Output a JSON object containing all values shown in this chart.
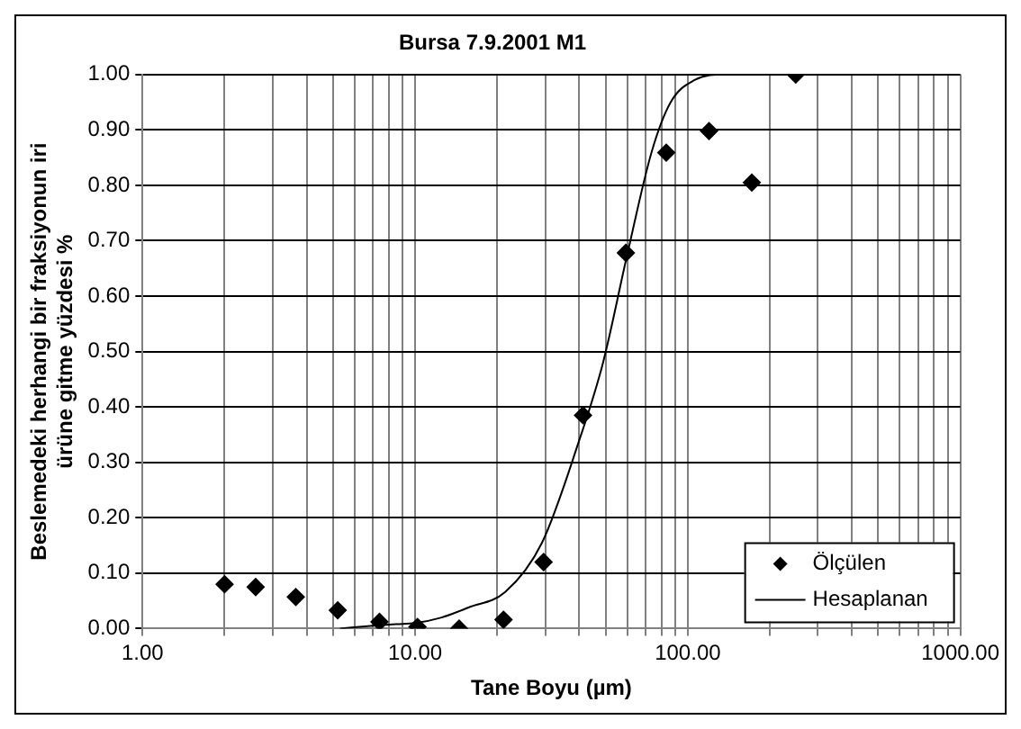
{
  "chart_data": {
    "type": "scatter",
    "title": "Bursa 7.9.2001 M1",
    "xlabel": "Tane Boyu (µm)",
    "ylabel": "Beslemedeki herhangi bir fraksiyonun iri\nürüne gitme yüzdesi %",
    "log": "x",
    "grid": true,
    "legend": "bottom right",
    "xlim": [
      1,
      1000
    ],
    "xticks": [
      {
        "value": 1,
        "label": "1.00"
      },
      {
        "value": 2,
        "label": null
      },
      {
        "value": 3,
        "label": null
      },
      {
        "value": 4,
        "label": null
      },
      {
        "value": 5,
        "label": null
      },
      {
        "value": 6,
        "label": null
      },
      {
        "value": 7,
        "label": null
      },
      {
        "value": 8,
        "label": null
      },
      {
        "value": 9,
        "label": null
      },
      {
        "value": 10,
        "label": "10.00"
      },
      {
        "value": 20,
        "label": null
      },
      {
        "value": 30,
        "label": null
      },
      {
        "value": 40,
        "label": null
      },
      {
        "value": 50,
        "label": null
      },
      {
        "value": 60,
        "label": null
      },
      {
        "value": 70,
        "label": null
      },
      {
        "value": 80,
        "label": null
      },
      {
        "value": 90,
        "label": null
      },
      {
        "value": 100,
        "label": "100.00"
      },
      {
        "value": 200,
        "label": null
      },
      {
        "value": 300,
        "label": null
      },
      {
        "value": 400,
        "label": null
      },
      {
        "value": 500,
        "label": null
      },
      {
        "value": 600,
        "label": null
      },
      {
        "value": 700,
        "label": null
      },
      {
        "value": 800,
        "label": null
      },
      {
        "value": 900,
        "label": null
      },
      {
        "value": 1000,
        "label": "1000.00"
      }
    ],
    "ylim": [
      0,
      1
    ],
    "yticks": [
      {
        "value": 0,
        "label": "0.00"
      },
      {
        "value": 0.1,
        "label": "0.10"
      },
      {
        "value": 0.2,
        "label": "0.20"
      },
      {
        "value": 0.3,
        "label": "0.30"
      },
      {
        "value": 0.4,
        "label": "0.40"
      },
      {
        "value": 0.5,
        "label": "0.50"
      },
      {
        "value": 0.6,
        "label": "0.60"
      },
      {
        "value": 0.7,
        "label": "0.70"
      },
      {
        "value": 0.8,
        "label": "0.80"
      },
      {
        "value": 0.9,
        "label": "0.90"
      },
      {
        "value": 1,
        "label": "1.00"
      }
    ],
    "series": [
      {
        "name": "Ölçülen",
        "type": "scatter",
        "marker": "diamond",
        "color": "#000000",
        "x": [
          2.0,
          2.6,
          3.65,
          5.2,
          7.4,
          10.2,
          14.5,
          21.1,
          29.6,
          41.3,
          59.3,
          83.4,
          119.7,
          171.8,
          249
        ],
        "values": [
          0.08,
          0.075,
          0.057,
          0.033,
          0.012,
          0.003,
          0.0,
          0.016,
          0.12,
          0.385,
          0.678,
          0.859,
          0.898,
          0.805,
          1.0
        ]
      },
      {
        "name": "Hesaplanan",
        "type": "line",
        "marker": "none",
        "line_style": "solid",
        "color": "#000000",
        "x": [
          5.3,
          7,
          8.5,
          10,
          12.5,
          15.7,
          21.4,
          29.2,
          39.7,
          48.9,
          60.3,
          73.7,
          86.6,
          106,
          137,
          178,
          249
        ],
        "values": [
          0.0,
          0.005,
          0.008,
          0.01,
          0.02,
          0.038,
          0.066,
          0.155,
          0.335,
          0.48,
          0.68,
          0.86,
          0.95,
          0.99,
          1.0,
          1.0,
          1.0
        ]
      }
    ]
  }
}
